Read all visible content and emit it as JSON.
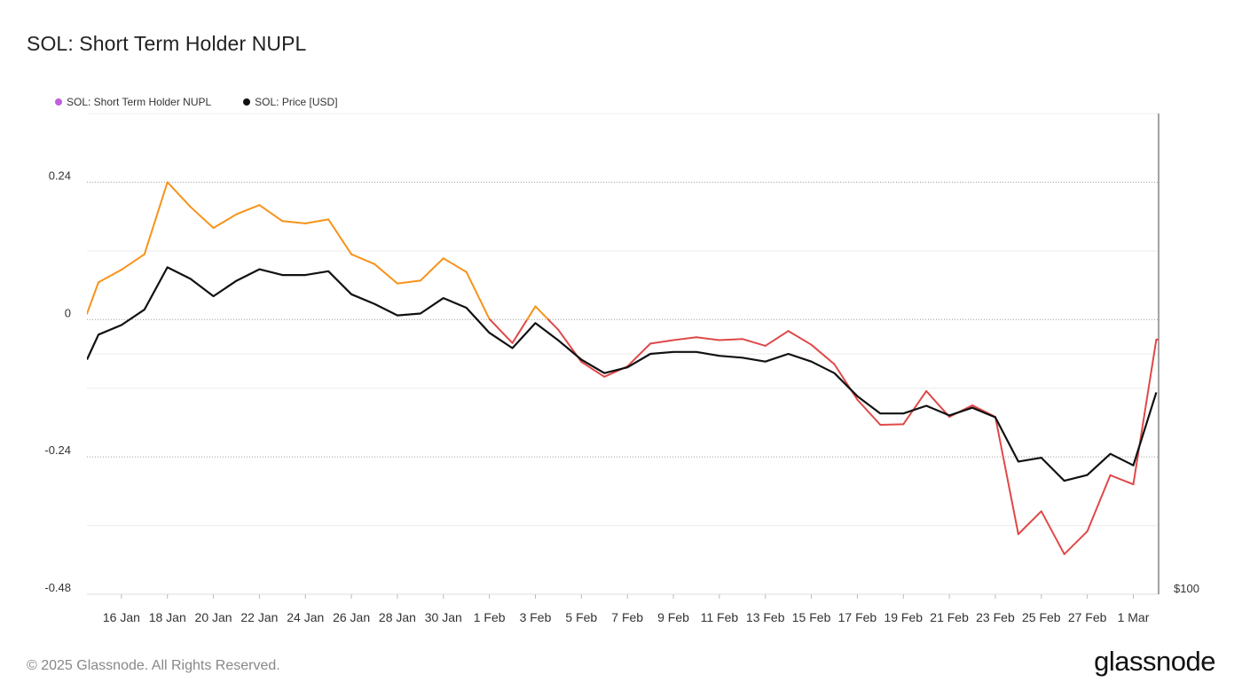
{
  "title": "SOL: Short Term Holder NUPL",
  "legend": [
    {
      "label": "SOL: Short Term Holder NUPL",
      "color": "#c060e0"
    },
    {
      "label": "SOL: Price [USD]",
      "color": "#111111"
    }
  ],
  "footer": "© 2025 Glassnode. All Rights Reserved.",
  "logo": "glassnode",
  "chart_data": {
    "type": "line",
    "title": "SOL: Short Term Holder NUPL",
    "x_tick_labels": [
      "16 Jan",
      "18 Jan",
      "20 Jan",
      "22 Jan",
      "24 Jan",
      "26 Jan",
      "28 Jan",
      "30 Jan",
      "1 Feb",
      "3 Feb",
      "5 Feb",
      "7 Feb",
      "9 Feb",
      "11 Feb",
      "13 Feb",
      "15 Feb",
      "17 Feb",
      "19 Feb",
      "21 Feb",
      "23 Feb",
      "25 Feb",
      "27 Feb",
      "1 Mar"
    ],
    "x_tick_day_index": [
      1,
      3,
      5,
      7,
      9,
      11,
      13,
      15,
      17,
      19,
      21,
      23,
      25,
      27,
      29,
      31,
      33,
      35,
      37,
      39,
      41,
      43,
      45
    ],
    "x_range_days": [
      -0.5,
      46.1
    ],
    "y_left_ticks": [
      0.24,
      0,
      -0.24,
      -0.48
    ],
    "y_left_tick_labels": [
      "0.24",
      "0",
      "-0.24",
      "-0.48"
    ],
    "y_left_range": [
      -0.48,
      0.36
    ],
    "y_right_tick_labels": [
      "$100"
    ],
    "y_right_range": [
      100,
      350
    ],
    "positive_color": "#f7931a",
    "negative_color": "#e04848",
    "series": [
      {
        "name": "SOL: Short Term Holder NUPL",
        "axis": "left",
        "x_day_index": [
          -0.5,
          0,
          1,
          2,
          3,
          4,
          5,
          6,
          7,
          8,
          9,
          10,
          11,
          12,
          13,
          14,
          15,
          16,
          17,
          18,
          19,
          20,
          21,
          22,
          23,
          24,
          25,
          26,
          27,
          28,
          29,
          30,
          31,
          32,
          33,
          34,
          35,
          36,
          37,
          38,
          39,
          40,
          41,
          42,
          43,
          44,
          45,
          46,
          46.1
        ],
        "values": [
          0.01,
          0.065,
          0.087,
          0.114,
          0.24,
          0.197,
          0.16,
          0.184,
          0.2,
          0.172,
          0.168,
          0.175,
          0.114,
          0.097,
          0.063,
          0.068,
          0.107,
          0.083,
          0.001,
          -0.041,
          0.023,
          -0.018,
          -0.074,
          -0.1,
          -0.082,
          -0.042,
          -0.036,
          -0.031,
          -0.036,
          -0.034,
          -0.046,
          -0.02,
          -0.044,
          -0.078,
          -0.14,
          -0.184,
          -0.183,
          -0.125,
          -0.17,
          -0.15,
          -0.17,
          -0.375,
          -0.335,
          -0.41,
          -0.37,
          -0.272,
          -0.288,
          -0.035,
          -0.035
        ]
      },
      {
        "name": "SOL: Price [USD]",
        "axis": "right",
        "x_day_index": [
          -0.5,
          0,
          1,
          2,
          3,
          4,
          5,
          6,
          7,
          8,
          9,
          10,
          11,
          12,
          13,
          14,
          15,
          16,
          17,
          18,
          19,
          20,
          21,
          22,
          23,
          24,
          25,
          26,
          27,
          28,
          29,
          30,
          31,
          32,
          33,
          34,
          35,
          36,
          37,
          38,
          39,
          40,
          41,
          42,
          43,
          44,
          45,
          46
        ],
        "values": [
          222,
          235,
          240,
          248,
          270,
          264,
          255,
          263,
          269,
          266,
          266,
          268,
          256,
          251,
          245,
          246,
          254,
          249,
          236,
          228,
          241,
          232,
          222,
          215,
          218,
          225,
          226,
          226,
          224,
          223,
          221,
          225,
          221,
          215,
          203,
          194,
          194,
          198,
          193,
          197,
          192,
          169,
          171,
          159,
          162,
          173,
          167,
          205
        ]
      }
    ]
  }
}
